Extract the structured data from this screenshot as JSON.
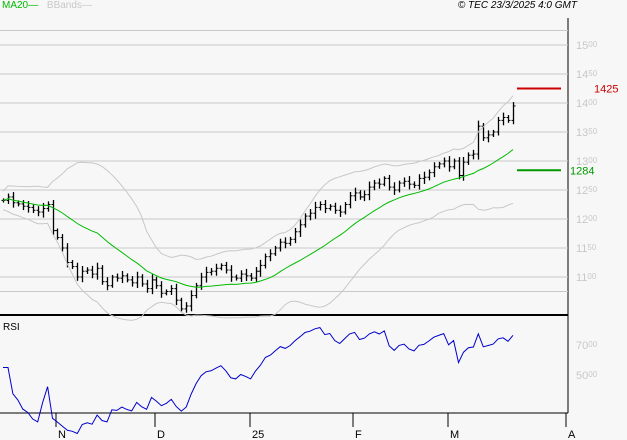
{
  "header": {
    "legend": [
      {
        "label": "MA20",
        "color": "#00bb00"
      },
      {
        "label": "BBands",
        "color": "#c8c8c8"
      }
    ],
    "copyright": "© TEC 23/3/2025 4:0 GMT"
  },
  "chart_data": [
    {
      "type": "ohlc-bar",
      "title": "",
      "y_ticks": [
        "1100",
        "1150",
        "1200",
        "1250",
        "1300",
        "1350",
        "1400",
        "1450",
        "1500"
      ],
      "ylim": [
        1040,
        1540
      ],
      "x_tick_labels": [
        "N",
        "D",
        "25",
        "F",
        "M",
        "A"
      ],
      "grid": true,
      "close": [
        1232,
        1238,
        1228,
        1226,
        1222,
        1220,
        1215,
        1212,
        1218,
        1225,
        1180,
        1168,
        1150,
        1125,
        1118,
        1100,
        1110,
        1112,
        1105,
        1115,
        1092,
        1085,
        1100,
        1098,
        1102,
        1095,
        1090,
        1100,
        1088,
        1080,
        1095,
        1085,
        1072,
        1075,
        1080,
        1060,
        1045,
        1050,
        1068,
        1085,
        1100,
        1108,
        1110,
        1115,
        1120,
        1112,
        1100,
        1098,
        1105,
        1102,
        1098,
        1110,
        1120,
        1135,
        1140,
        1150,
        1160,
        1158,
        1165,
        1178,
        1190,
        1205,
        1210,
        1220,
        1225,
        1218,
        1222,
        1215,
        1212,
        1225,
        1240,
        1245,
        1238,
        1242,
        1255,
        1262,
        1260,
        1270,
        1255,
        1250,
        1262,
        1265,
        1260,
        1258,
        1270,
        1272,
        1280,
        1290,
        1295,
        1300,
        1290,
        1300,
        1275,
        1298,
        1310,
        1312,
        1360,
        1340,
        1345,
        1350,
        1370,
        1375,
        1370,
        1395
      ],
      "levels": [
        {
          "label": "1425",
          "value": 1425,
          "color": "#cc0000"
        },
        {
          "label": "1284",
          "value": 1284,
          "color": "#009900"
        }
      ],
      "overlays": [
        "MA20",
        "BBands"
      ]
    },
    {
      "type": "line",
      "title": "RSI",
      "y_ticks": [
        "5000",
        "7000"
      ],
      "ylim": [
        15,
        100
      ],
      "series_color": "#0000cc"
    }
  ]
}
